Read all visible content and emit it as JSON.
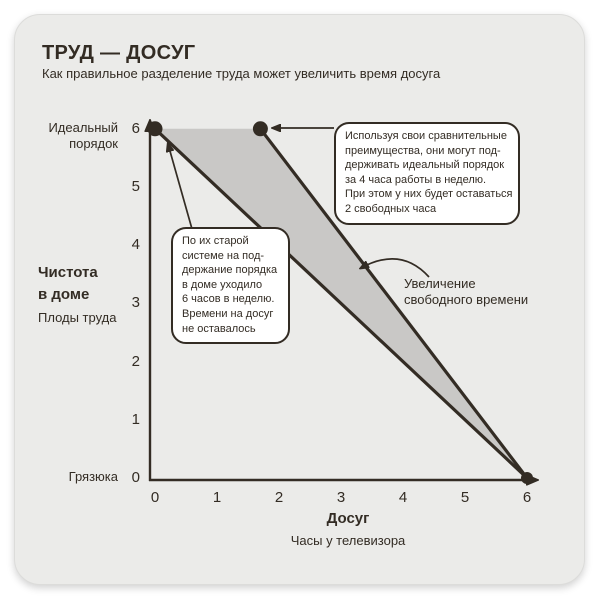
{
  "page": {
    "title": "ТРУД — ДОСУГ",
    "subtitle": "Как правильное разделение труда может увеличить время досуга"
  },
  "chart_data": {
    "type": "line",
    "title": "ТРУД — ДОСУГ",
    "subtitle": "Как правильное разделение труда может увеличить время досуга",
    "xlabel": "Досуг",
    "xlabel_sub": "Часы у телевизора",
    "ylabel": "Чистота\nв доме",
    "ylabel_sub": "Плоды труда",
    "xlim": [
      0,
      6.4
    ],
    "ylim": [
      0,
      6.4
    ],
    "grid": false,
    "legend": "none",
    "x_ticks": [
      "0",
      "1",
      "2",
      "3",
      "4",
      "5",
      "6"
    ],
    "y_ticks_top_to_bottom": [
      "6",
      "5",
      "4",
      "3",
      "2",
      "1",
      "0"
    ],
    "y_axis_max_label": "Идеальный\nпорядок",
    "y_axis_min_label": "Грязюка",
    "series": [
      {
        "name": "old-system-frontier",
        "points": [
          [
            0,
            6
          ],
          [
            6,
            0
          ]
        ]
      },
      {
        "name": "new-system-frontier",
        "points": [
          [
            1.7,
            6
          ],
          [
            6,
            0
          ]
        ]
      }
    ],
    "markers": [
      [
        0,
        6
      ],
      [
        1.7,
        6
      ],
      [
        6,
        0
      ]
    ],
    "shaded_region": {
      "points": [
        [
          0,
          6
        ],
        [
          1.7,
          6
        ],
        [
          6,
          0
        ]
      ],
      "label": "Увеличение свободного времени"
    },
    "annotations": {
      "old_system_callout": "По их старой\nсистеме на под-\nдержание порядка\nв доме уходило\n6 часов в неделю.\nВремени на досуг\nне оставалось",
      "new_system_callout": "Используя свои сравнительные\nпреимущества, они могут под-\nдерживать идеальный порядок\nза 4 часа работы в неделю.\nПри этом у них будет оставаться\n2 свободных часа",
      "free_time_label": "Увеличение\nсвободного времени"
    },
    "colors": {
      "ink": "#332c24",
      "shade": "#c9c8c6",
      "card_bg": "#ebebe9",
      "callout_bg": "#ffffff",
      "page_bg": "#ffffff"
    }
  }
}
